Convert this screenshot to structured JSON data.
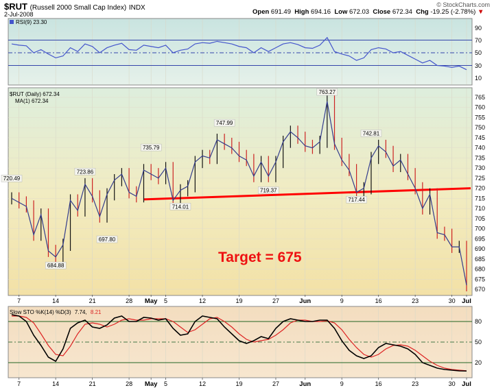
{
  "header": {
    "symbol": "$RUT",
    "name": "(Russell 2000 Small Cap Index)",
    "exchange": "INDX",
    "date": "2-Jul-2008",
    "open_label": "Open",
    "open": "691.49",
    "high_label": "High",
    "high": "694.16",
    "low_label": "Low",
    "low": "672.03",
    "close_label": "Close",
    "close": "672.34",
    "chg_label": "Chg",
    "chg": "-19.25 (-2.78%)",
    "chg_arrow": "▼",
    "copyright": "© StockCharts.com"
  },
  "rsi_panel": {
    "legend": "RSI(9) 23.30",
    "ticks": [
      "90",
      "70",
      "50",
      "30",
      "10"
    ]
  },
  "price_panel": {
    "legend": "$RUT (Daily) 672.34",
    "ma_legend": "MA(1) 672.34",
    "ticks": [
      "765",
      "760",
      "755",
      "750",
      "745",
      "740",
      "735",
      "730",
      "725",
      "720",
      "715",
      "710",
      "705",
      "700",
      "695",
      "690",
      "685",
      "680",
      "675",
      "670"
    ],
    "annotation": "Target = 675",
    "labels": [
      "720.49",
      "723.86",
      "697.80",
      "684.88",
      "735.79",
      "747.99",
      "714.01",
      "719.37",
      "763.27",
      "717.44",
      "742.81"
    ]
  },
  "sto_panel": {
    "legend_prefix": "Slow STO %K(14) %D(3)",
    "k_value": "7.74,",
    "d_value": "8.21",
    "ticks": [
      "80",
      "50",
      "20"
    ]
  },
  "x_axis": {
    "labels": [
      "7",
      "14",
      "21",
      "28",
      "May",
      "5",
      "12",
      "19",
      "27",
      "Jun",
      "9",
      "16",
      "23",
      "30",
      "Jul"
    ]
  },
  "colors": {
    "price_line": "#333c8c",
    "trendline": "#ff0000",
    "k_line": "#000000",
    "d_line": "#dd2222",
    "rsi_line": "#4455cc"
  },
  "chart_data": [
    {
      "type": "line",
      "title": "$RUT (Daily) 672.34",
      "series": [
        {
          "name": "$RUT",
          "values": [
            715,
            713,
            711,
            697,
            707,
            689,
            686,
            692,
            714,
            709,
            722,
            716,
            706,
            717,
            724,
            727,
            718,
            716,
            729,
            727,
            725,
            730,
            714,
            719,
            721,
            733,
            736,
            735,
            744,
            742,
            740,
            736,
            734,
            726,
            733,
            726,
            733,
            743,
            748,
            745,
            741,
            740,
            743,
            763,
            742,
            734,
            729,
            718,
            720,
            735,
            741,
            738,
            731,
            734,
            727,
            720,
            710,
            717,
            698,
            697,
            691,
            691,
            672
          ]
        }
      ],
      "ylim": [
        670,
        765
      ],
      "trendline": [
        714.5,
        720
      ]
    },
    {
      "type": "line",
      "title": "RSI(9) 23.30",
      "series": [
        {
          "name": "RSI(9)",
          "values": [
            64,
            62,
            61,
            50,
            55,
            48,
            42,
            45,
            58,
            52,
            64,
            60,
            50,
            58,
            62,
            65,
            55,
            54,
            62,
            60,
            58,
            62,
            50,
            54,
            56,
            64,
            66,
            65,
            68,
            66,
            64,
            60,
            58,
            50,
            58,
            52,
            58,
            64,
            66,
            63,
            58,
            57,
            62,
            74,
            52,
            48,
            45,
            38,
            42,
            55,
            58,
            56,
            50,
            52,
            46,
            40,
            34,
            38,
            30,
            29,
            27,
            29,
            23.3
          ]
        }
      ],
      "ylim": [
        0,
        100
      ],
      "reference_lines": [
        70,
        50,
        30
      ]
    },
    {
      "type": "line",
      "title": "Slow STO %K(14) %D(3)",
      "series": [
        {
          "name": "%K",
          "values": [
            90,
            88,
            80,
            60,
            45,
            28,
            22,
            40,
            70,
            78,
            82,
            72,
            70,
            75,
            85,
            88,
            80,
            80,
            86,
            85,
            82,
            84,
            70,
            60,
            62,
            80,
            88,
            86,
            84,
            72,
            62,
            52,
            48,
            52,
            58,
            55,
            70,
            80,
            84,
            82,
            80,
            80,
            82,
            82,
            70,
            52,
            38,
            30,
            26,
            30,
            42,
            48,
            46,
            44,
            40,
            32,
            20,
            16,
            12,
            10,
            9,
            8,
            7.74
          ]
        },
        {
          "name": "%D",
          "values": [
            88,
            88,
            86,
            78,
            62,
            45,
            32,
            30,
            44,
            62,
            76,
            78,
            76,
            72,
            76,
            82,
            84,
            82,
            82,
            84,
            84,
            84,
            80,
            72,
            64,
            68,
            76,
            84,
            86,
            80,
            72,
            62,
            54,
            50,
            52,
            54,
            60,
            68,
            78,
            82,
            82,
            80,
            80,
            81,
            78,
            68,
            54,
            42,
            32,
            28,
            32,
            40,
            45,
            46,
            44,
            38,
            30,
            22,
            16,
            12,
            10,
            9,
            8.21
          ]
        }
      ],
      "ylim": [
        0,
        100
      ],
      "reference_lines": [
        80,
        50,
        20
      ]
    }
  ]
}
